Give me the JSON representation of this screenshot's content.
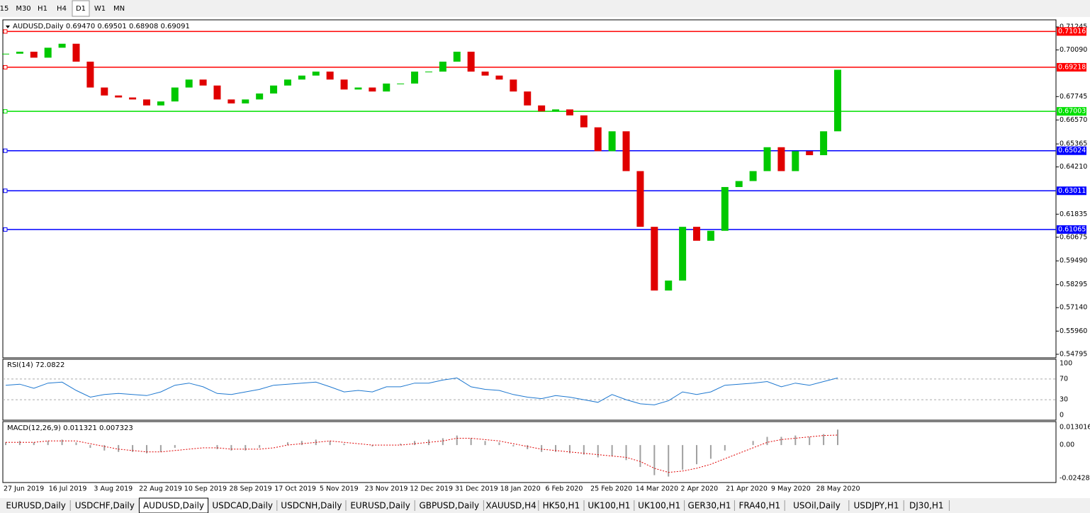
{
  "toolbar": {
    "timeframes": [
      "15",
      "M30",
      "H1",
      "H4",
      "D1",
      "W1",
      "MN"
    ],
    "active": "D1"
  },
  "chart": {
    "header": "AUDUSD,Daily  0.69470 0.69501 0.68908 0.69091",
    "ylim": [
      0.54795,
      0.71245
    ],
    "yticks": [
      0.71245,
      {
        "value": 0.7009,
        "label": "0.70090"
      },
      0.67745,
      {
        "value": 0.6657,
        "label": "0.66570"
      },
      0.65365,
      {
        "value": 0.6421,
        "label": "0.64210"
      },
      0.61835,
      0.60675,
      {
        "value": 0.5949,
        "label": "0.59490"
      },
      0.58295,
      {
        "value": 0.5714,
        "label": "0.57140"
      },
      {
        "value": 0.5596,
        "label": "0.55960"
      },
      0.54795
    ],
    "levels": [
      {
        "value": 0.71016,
        "color": "#ff0000"
      },
      {
        "value": 0.69218,
        "color": "#ff0000"
      },
      {
        "value": 0.67003,
        "color": "#00e000"
      },
      {
        "value": 0.65024,
        "color": "#0000ff"
      },
      {
        "value": 0.63011,
        "color": "#0000ff"
      },
      {
        "value": 0.61065,
        "color": "#0000ff"
      }
    ],
    "closes": [
      0.699,
      0.7,
      0.697,
      0.702,
      0.704,
      0.695,
      0.682,
      0.678,
      0.677,
      0.676,
      0.673,
      0.675,
      0.682,
      0.686,
      0.683,
      0.676,
      0.674,
      0.676,
      0.679,
      0.683,
      0.686,
      0.688,
      0.69,
      0.686,
      0.681,
      0.682,
      0.68,
      0.684,
      0.684,
      0.69,
      0.69,
      0.695,
      0.7,
      0.69,
      0.688,
      0.686,
      0.68,
      0.673,
      0.67,
      0.671,
      0.668,
      0.662,
      0.65,
      0.66,
      0.64,
      0.612,
      0.58,
      0.585,
      0.612,
      0.605,
      0.61,
      0.632,
      0.635,
      0.64,
      0.652,
      0.64,
      0.65,
      0.648,
      0.66,
      0.69091
    ],
    "up_color": "#00c800",
    "down_color": "#e00000"
  },
  "rsi": {
    "label": "RSI(14) 72.0822",
    "ylim": [
      0,
      100
    ],
    "yticks": [
      100,
      70,
      30,
      0
    ],
    "color": "#1e78d0",
    "values": [
      58,
      60,
      52,
      62,
      64,
      48,
      35,
      40,
      42,
      40,
      38,
      45,
      58,
      62,
      55,
      42,
      40,
      45,
      50,
      58,
      60,
      62,
      64,
      55,
      45,
      48,
      45,
      55,
      55,
      62,
      62,
      68,
      72,
      55,
      50,
      48,
      40,
      35,
      32,
      38,
      35,
      30,
      25,
      40,
      30,
      22,
      20,
      28,
      45,
      40,
      45,
      58,
      60,
      62,
      65,
      55,
      62,
      58,
      65,
      72.0822
    ]
  },
  "macd": {
    "label": "MACD(12,26,9) 0.011321 0.007323",
    "ylim": [
      -0.024282,
      0.013016
    ],
    "yticks": [
      0.013016,
      {
        "value": 0,
        "label": "0.00"
      },
      -0.024282
    ],
    "hist_color": "#a0a0a0",
    "signal_color": "#e00000",
    "histogram": [
      0.002,
      0.003,
      0.002,
      0.003,
      0.004,
      0.002,
      -0.002,
      -0.004,
      -0.005,
      -0.005,
      -0.006,
      -0.005,
      -0.002,
      0,
      0,
      -0.003,
      -0.004,
      -0.004,
      -0.002,
      0,
      0.002,
      0.003,
      0.004,
      0.003,
      0.001,
      0,
      -0.001,
      0,
      0.001,
      0.003,
      0.004,
      0.005,
      0.007,
      0.005,
      0.003,
      0.002,
      -0.001,
      -0.003,
      -0.005,
      -0.005,
      -0.006,
      -0.007,
      -0.009,
      -0.008,
      -0.011,
      -0.016,
      -0.022,
      -0.023,
      -0.018,
      -0.014,
      -0.01,
      -0.004,
      0,
      0.003,
      0.006,
      0.006,
      0.007,
      0.006,
      0.008,
      0.011321
    ],
    "signal": [
      0.002,
      0.002,
      0.002,
      0.003,
      0.003,
      0.003,
      0.001,
      -0.001,
      -0.003,
      -0.004,
      -0.005,
      -0.005,
      -0.004,
      -0.003,
      -0.002,
      -0.002,
      -0.003,
      -0.003,
      -0.003,
      -0.002,
      0,
      0.001,
      0.002,
      0.003,
      0.002,
      0.001,
      0,
      0,
      0,
      0.001,
      0.002,
      0.003,
      0.005,
      0.005,
      0.004,
      0.003,
      0.001,
      -0.001,
      -0.003,
      -0.004,
      -0.005,
      -0.006,
      -0.007,
      -0.008,
      -0.009,
      -0.012,
      -0.017,
      -0.02,
      -0.019,
      -0.017,
      -0.014,
      -0.01,
      -0.006,
      -0.002,
      0.002,
      0.004,
      0.005,
      0.006,
      0.007,
      0.007323
    ]
  },
  "dates": [
    "27 Jun 2019",
    "16 Jul 2019",
    "3 Aug 2019",
    "22 Aug 2019",
    "10 Sep 2019",
    "28 Sep 2019",
    "17 Oct 2019",
    "5 Nov 2019",
    "23 Nov 2019",
    "12 Dec 2019",
    "31 Dec 2019",
    "18 Jan 2020",
    "6 Feb 2020",
    "25 Feb 2020",
    "14 Mar 2020",
    "2 Apr 2020",
    "21 Apr 2020",
    "9 May 2020",
    "28 May 2020"
  ],
  "tabs": {
    "items": [
      "EURUSD,Daily",
      "USDCHF,Daily",
      "AUDUSD,Daily",
      "USDCAD,Daily",
      "USDCNH,Daily",
      "EURUSD,Daily",
      "GBPUSD,Daily",
      "XAUUSD,H4",
      "HK50,H1",
      "UK100,H1",
      "UK100,H1",
      "GER30,H1",
      "FRA40,H1",
      "USOil,Daily",
      "USDJPY,H1",
      "DJ30,H1"
    ],
    "active": "AUDUSD,Daily"
  }
}
